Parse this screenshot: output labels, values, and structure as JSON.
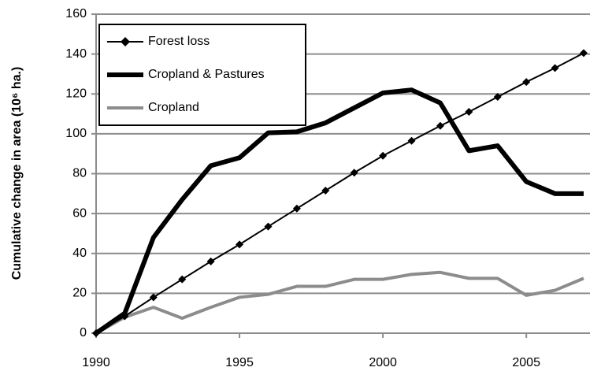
{
  "chart_data": {
    "type": "line",
    "y_label": "Cumulative change in area (10⁶ ha.)",
    "x": [
      1990,
      1991,
      1992,
      1993,
      1994,
      1995,
      1996,
      1997,
      1998,
      1999,
      2000,
      2001,
      2002,
      2003,
      2004,
      2005,
      2006,
      2007
    ],
    "series": [
      {
        "name": "Forest loss",
        "color": "#000000",
        "marker": "diamond",
        "line_width": 2,
        "values": [
          0,
          8.5,
          18,
          27,
          36,
          44.5,
          53.5,
          62.5,
          71.5,
          80.5,
          89,
          96.5,
          104,
          111,
          118.5,
          126,
          133,
          140.5
        ]
      },
      {
        "name": "Cropland & Pastures",
        "color": "#000000",
        "marker": null,
        "line_width": 6,
        "values": [
          0,
          10,
          48,
          67,
          84,
          88,
          100.5,
          101,
          105.5,
          113,
          120.5,
          122,
          115.5,
          91.5,
          94,
          76,
          70,
          70
        ]
      },
      {
        "name": "Cropland",
        "color": "#8c8c8c",
        "marker": null,
        "line_width": 4,
        "values": [
          0,
          8,
          13,
          7.5,
          13,
          18,
          19.5,
          23.5,
          23.5,
          27,
          27,
          29.5,
          30.5,
          27.5,
          27.5,
          19,
          21.5,
          27.5
        ]
      }
    ],
    "xlim": [
      1990,
      2007
    ],
    "xticks": [
      1990,
      1995,
      2000,
      2005
    ],
    "ylim": [
      0,
      160
    ],
    "yticks": [
      0,
      20,
      40,
      60,
      80,
      100,
      120,
      140,
      160
    ],
    "grid": true,
    "legend": "upper left"
  }
}
